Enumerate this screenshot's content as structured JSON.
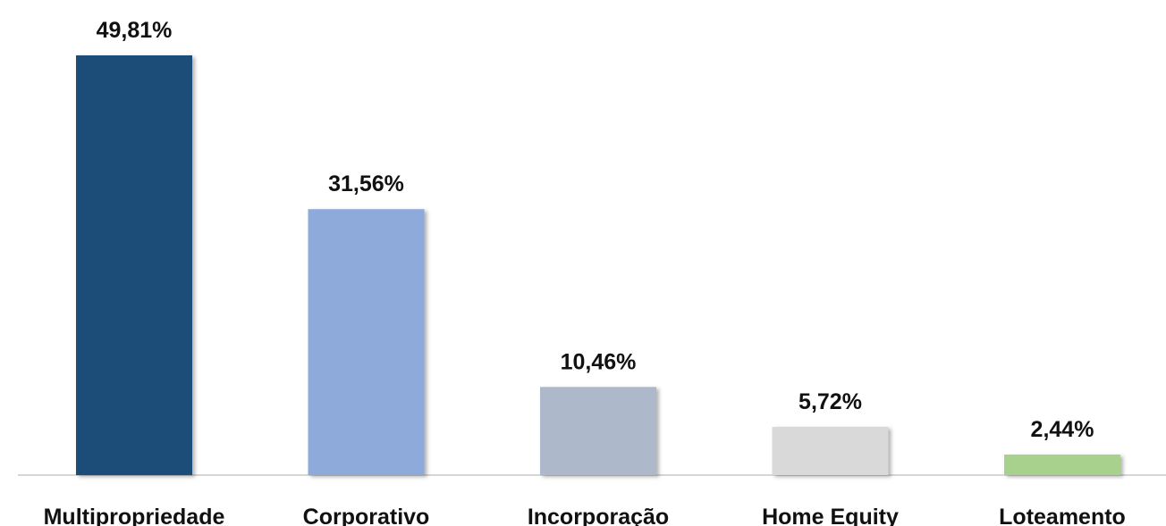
{
  "chart_data": {
    "type": "bar",
    "categories": [
      "Multipropriedade",
      "Corporativo",
      "Incorporação",
      "Home Equity",
      "Loteamento"
    ],
    "values": [
      49.81,
      31.56,
      10.46,
      5.72,
      2.44
    ],
    "value_labels": [
      "49,81%",
      "31,56%",
      "10,46%",
      "5,72%",
      "2,44%"
    ],
    "colors": [
      "#1f4e79",
      "#8eaadb",
      "#adb9ca",
      "#d9d9d9",
      "#a9d18e"
    ]
  }
}
